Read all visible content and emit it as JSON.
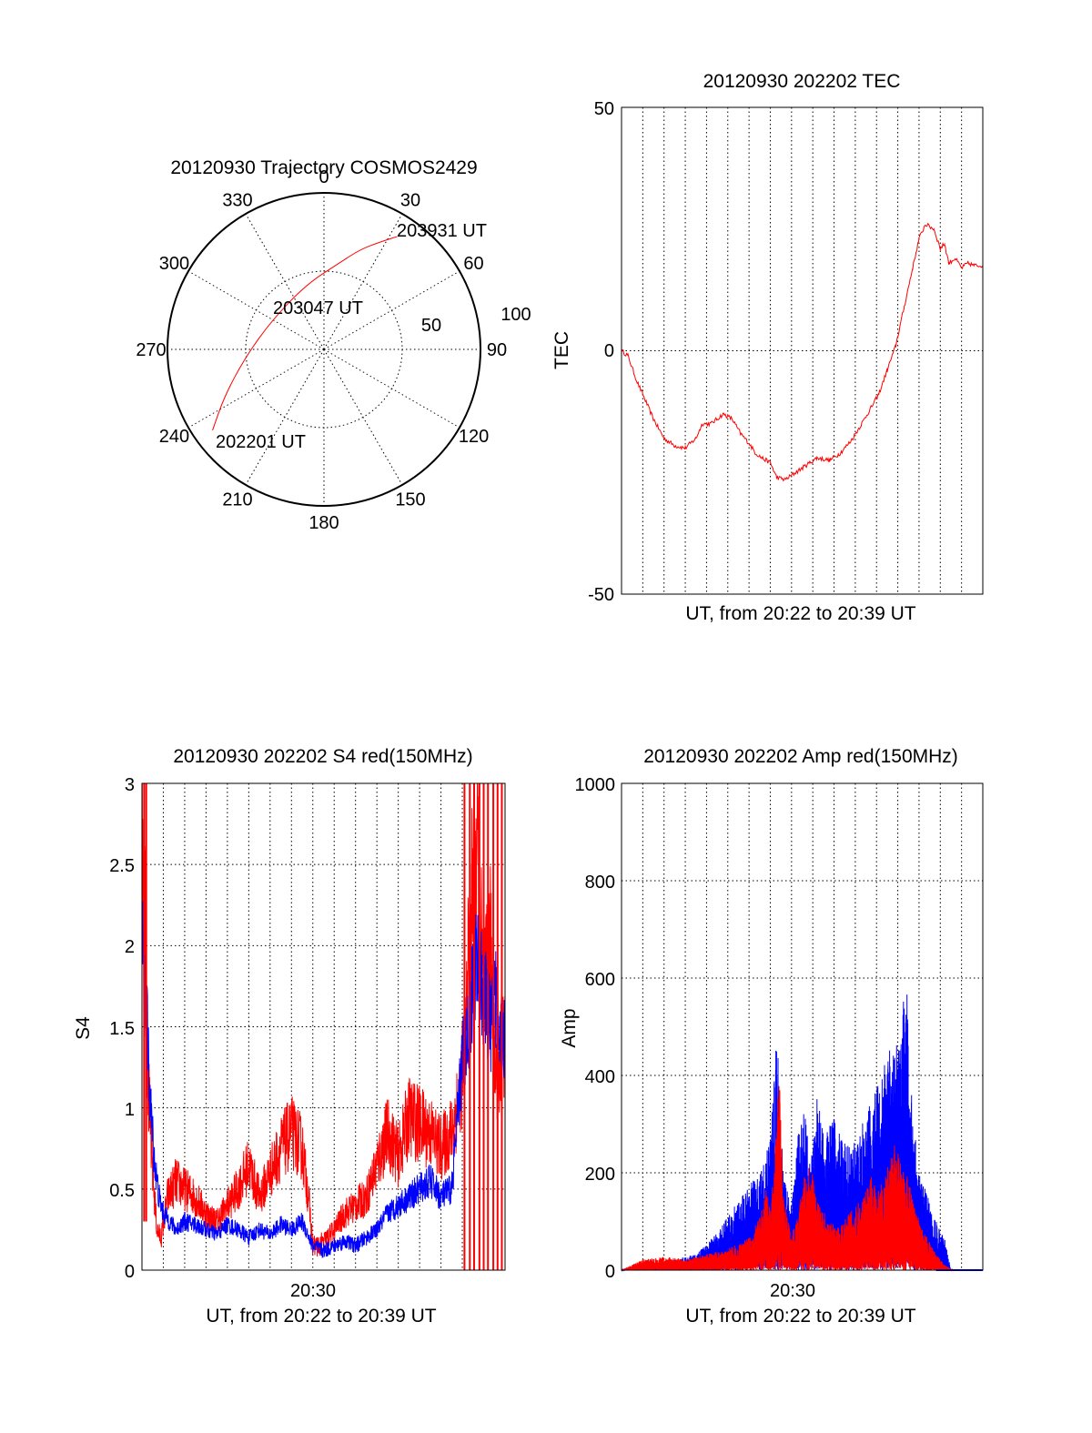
{
  "chart_data": [
    {
      "type": "polar",
      "title": "20120930 Trajectory COSMOS2429",
      "azimuth_labels": [
        "0",
        "30",
        "60",
        "90",
        "120",
        "150",
        "180",
        "210",
        "240",
        "270",
        "300",
        "330"
      ],
      "ring_labels": [
        "50",
        "100"
      ],
      "rlim": [
        0,
        100
      ],
      "grid": true,
      "series": [
        {
          "color": "#ff0000",
          "points": [
            {
              "az": 234,
              "r": 88
            },
            {
              "az": 245,
              "r": 70
            },
            {
              "az": 265,
              "r": 50
            },
            {
              "az": 300,
              "r": 38
            },
            {
              "az": 345,
              "r": 43
            },
            {
              "az": 10,
              "r": 56
            },
            {
              "az": 20,
              "r": 68
            },
            {
              "az": 28,
              "r": 78
            },
            {
              "az": 33,
              "r": 86
            }
          ]
        }
      ],
      "annotations": [
        {
          "text": "203931 UT",
          "az": 35,
          "r": 90
        },
        {
          "text": "203047 UT",
          "az": 325,
          "r": 52
        },
        {
          "text": "202201 UT",
          "az": 226,
          "r": 87
        }
      ]
    },
    {
      "type": "line",
      "title": "20120930 202202 TEC",
      "xlabel": "UT, from 20:22 to 20:39 UT",
      "ylabel": "TEC",
      "xlim": [
        0,
        17
      ],
      "ylim": [
        -50,
        50
      ],
      "yticks": [
        "-50",
        "0",
        "50"
      ],
      "grid": true,
      "series": [
        {
          "color": "#ff0000",
          "x": [
            0,
            0.3,
            0.7,
            1.0,
            1.5,
            2.0,
            2.5,
            3.0,
            3.5,
            3.8,
            4.2,
            4.5,
            4.8,
            5.2,
            5.6,
            6.0,
            6.3,
            6.6,
            7.0,
            7.3,
            7.7,
            8.2,
            8.7,
            9.2,
            9.8,
            10.3,
            10.8,
            11.3,
            11.7,
            12.1,
            12.5,
            12.9,
            13.3,
            13.7,
            14.0,
            14.3,
            14.7,
            15.0,
            15.2,
            15.4,
            15.7,
            16.0,
            16.3,
            16.6,
            17.0
          ],
          "y": [
            0,
            -1,
            -6,
            -9,
            -14,
            -18,
            -19.5,
            -20,
            -18,
            -15,
            -15,
            -14,
            -13,
            -14,
            -17,
            -19,
            -21,
            -22,
            -23,
            -26,
            -26.5,
            -25,
            -23.5,
            -22,
            -22.5,
            -21,
            -18.5,
            -15,
            -12,
            -9,
            -4,
            1,
            9,
            17,
            23,
            26,
            25,
            21,
            22,
            18,
            19,
            17,
            18,
            17.5,
            17.5
          ]
        }
      ]
    },
    {
      "type": "line",
      "title": "20120930 202202 S4 red(150MHz)",
      "xlabel": "UT, from 20:22 to 20:39 UT",
      "ylabel": "S4",
      "xlim": [
        0,
        17
      ],
      "ylim": [
        0,
        3
      ],
      "yticks": [
        "0",
        "0.5",
        "1",
        "1.5",
        "2",
        "2.5",
        "3"
      ],
      "xticks": [
        {
          "x": 8,
          "label": "20:30"
        }
      ],
      "grid": true,
      "series": [
        {
          "color": "#ff0000",
          "x": [
            0,
            0.15,
            0.3,
            0.5,
            0.7,
            0.9,
            1.2,
            1.6,
            2.0,
            2.5,
            3.0,
            3.5,
            4.0,
            4.5,
            5.0,
            5.5,
            6.0,
            6.5,
            7.0,
            7.5,
            7.8,
            8.0,
            8.3,
            8.7,
            9.0,
            9.5,
            10.0,
            10.5,
            11.0,
            11.5,
            12.0,
            12.5,
            13.0,
            13.5,
            14.0,
            14.5,
            14.8,
            15.1,
            15.4,
            15.7,
            16.0,
            16.3,
            16.6,
            17.0
          ],
          "y": [
            3.0,
            2.2,
            1.1,
            0.6,
            0.25,
            0.2,
            0.45,
            0.55,
            0.5,
            0.45,
            0.35,
            0.3,
            0.4,
            0.5,
            0.65,
            0.45,
            0.6,
            0.75,
            0.85,
            0.75,
            0.45,
            0.15,
            0.15,
            0.2,
            0.25,
            0.35,
            0.4,
            0.45,
            0.65,
            0.85,
            0.7,
            0.95,
            0.9,
            0.85,
            0.75,
            0.85,
            1.05,
            1.3,
            2.2,
            2.6,
            1.6,
            2.0,
            1.2,
            1.4
          ]
        },
        {
          "color": "#0000ff",
          "x": [
            0,
            0.2,
            0.4,
            0.6,
            0.8,
            1.0,
            1.3,
            1.6,
            2.0,
            2.5,
            3.0,
            3.5,
            4.0,
            4.5,
            5.0,
            5.5,
            6.0,
            6.5,
            7.0,
            7.5,
            8.0,
            8.5,
            9.0,
            9.5,
            10.0,
            10.5,
            11.0,
            11.5,
            12.0,
            12.5,
            13.0,
            13.5,
            14.0,
            14.5,
            15.0,
            15.3,
            15.6,
            16.0,
            16.3,
            16.6,
            17.0
          ],
          "y": [
            2.0,
            1.6,
            1.0,
            0.65,
            0.45,
            0.35,
            0.3,
            0.25,
            0.3,
            0.28,
            0.25,
            0.22,
            0.28,
            0.25,
            0.2,
            0.25,
            0.22,
            0.28,
            0.25,
            0.3,
            0.15,
            0.12,
            0.15,
            0.18,
            0.15,
            0.2,
            0.25,
            0.35,
            0.4,
            0.45,
            0.5,
            0.55,
            0.45,
            0.5,
            1.3,
            1.5,
            1.9,
            1.7,
            1.5,
            1.7,
            1.4
          ]
        }
      ]
    },
    {
      "type": "area",
      "title": "20120930 202202 Amp red(150MHz)",
      "xlabel": "UT, from 20:22 to 20:39 UT",
      "ylabel": "Amp",
      "xlim": [
        0,
        17
      ],
      "ylim": [
        0,
        1000
      ],
      "yticks": [
        "0",
        "200",
        "400",
        "600",
        "800",
        "1000"
      ],
      "xticks": [
        {
          "x": 8,
          "label": "20:30"
        }
      ],
      "grid": true,
      "series": [
        {
          "color": "#0000ff",
          "x": [
            0,
            0.5,
            1.0,
            2.0,
            3.0,
            3.5,
            4.0,
            4.5,
            5.0,
            5.5,
            6.0,
            6.5,
            7.0,
            7.3,
            7.6,
            7.8,
            8.0,
            8.3,
            8.6,
            8.9,
            9.2,
            9.6,
            10.0,
            10.4,
            10.8,
            11.2,
            11.6,
            12.0,
            12.4,
            12.8,
            13.1,
            13.4,
            13.7,
            14.0,
            14.3,
            14.6,
            14.9,
            15.2,
            15.5,
            17.0
          ],
          "y": [
            0,
            5,
            10,
            15,
            25,
            30,
            50,
            70,
            100,
            130,
            160,
            180,
            250,
            450,
            200,
            150,
            120,
            250,
            300,
            200,
            320,
            250,
            300,
            240,
            230,
            260,
            300,
            340,
            400,
            420,
            440,
            550,
            300,
            180,
            150,
            120,
            80,
            60,
            0,
            0
          ]
        },
        {
          "color": "#ff0000",
          "x": [
            0,
            0.5,
            1.0,
            2.0,
            3.0,
            4.0,
            5.0,
            5.5,
            6.0,
            6.5,
            6.8,
            7.0,
            7.2,
            7.4,
            7.6,
            7.8,
            8.0,
            8.3,
            8.6,
            8.9,
            9.2,
            9.5,
            9.8,
            10.2,
            10.6,
            11.0,
            11.4,
            11.8,
            12.2,
            12.6,
            12.9,
            13.2,
            13.5,
            13.8,
            14.1,
            14.4,
            14.8,
            15.2,
            15.6,
            17.0
          ],
          "y": [
            0,
            10,
            20,
            25,
            20,
            30,
            40,
            50,
            60,
            100,
            150,
            120,
            200,
            400,
            160,
            100,
            60,
            120,
            180,
            200,
            130,
            110,
            90,
            80,
            100,
            120,
            140,
            180,
            160,
            200,
            240,
            200,
            170,
            120,
            80,
            60,
            30,
            10,
            0,
            0
          ]
        }
      ]
    }
  ]
}
